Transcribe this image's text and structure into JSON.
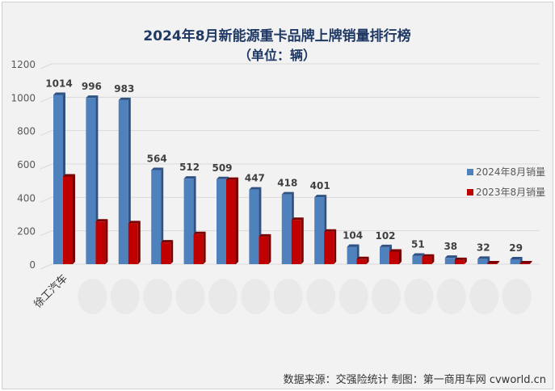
{
  "chart_data": {
    "type": "bar",
    "title": "2024年8月新能源重卡品牌上牌销量排行榜",
    "subtitle": "（单位：辆）",
    "categories": [
      "徐工汽车",
      "",
      "",
      "",
      "",
      "",
      "",
      "",
      "",
      "",
      "",
      "",
      "",
      "",
      ""
    ],
    "series": [
      {
        "name": "2024年8月销量",
        "color": "#4f81bd",
        "values": [
          1014,
          996,
          983,
          564,
          512,
          509,
          447,
          418,
          401,
          104,
          102,
          51,
          38,
          32,
          29
        ]
      },
      {
        "name": "2023年8月销量",
        "color": "#c00000",
        "values": [
          525,
          255,
          245,
          130,
          180,
          505,
          165,
          265,
          195,
          30,
          75,
          45,
          25,
          5,
          5
        ]
      }
    ],
    "ylim": [
      0,
      1200
    ],
    "yticks": [
      0,
      200,
      400,
      600,
      800,
      1000,
      1200
    ],
    "grid": true,
    "data_labels_series": "2024年8月销量",
    "legend_position": "right",
    "footer": "数据来源：交强险统计  制图：第一商用车网 cvworld.cn"
  }
}
